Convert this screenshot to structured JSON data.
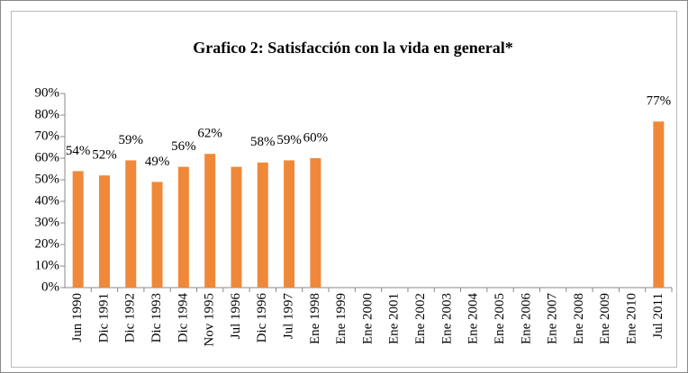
{
  "chart_data": {
    "type": "bar",
    "title": "Grafico 2: Satisfacción con la vida en general*",
    "categories": [
      "Jun 1990",
      "Dic 1991",
      "Dic 1992",
      "Dic 1993",
      "Dic 1994",
      "Nov 1995",
      "Jul 1996",
      "Dic 1996",
      "Jul 1997",
      "Ene 1998",
      "Ene 1999",
      "Ene 2000",
      "Ene 2001",
      "Ene 2002",
      "Ene 2003",
      "Ene 2004",
      "Ene 2005",
      "Ene 2006",
      "Ene 2007",
      "Ene 2008",
      "Ene 2009",
      "Ene 2010",
      "Jul 2011"
    ],
    "values": [
      54,
      52,
      59,
      49,
      56,
      62,
      56,
      58,
      59,
      60,
      null,
      null,
      null,
      null,
      null,
      null,
      null,
      null,
      null,
      null,
      null,
      null,
      77
    ],
    "value_labels": [
      "54%",
      "52%",
      "59%",
      "49%",
      "56%",
      "62%",
      null,
      "58%",
      "59%",
      "60%",
      null,
      null,
      null,
      null,
      null,
      null,
      null,
      null,
      null,
      null,
      null,
      null,
      "77%"
    ],
    "color": "#f0883a",
    "ylim": [
      0,
      90
    ],
    "yticks": [
      {
        "value": 0,
        "label": "0%"
      },
      {
        "value": 10,
        "label": "10%"
      },
      {
        "value": 20,
        "label": "20%"
      },
      {
        "value": 30,
        "label": "30%"
      },
      {
        "value": 40,
        "label": "40%"
      },
      {
        "value": 50,
        "label": "50%"
      },
      {
        "value": 60,
        "label": "60%"
      },
      {
        "value": 70,
        "label": "70%"
      },
      {
        "value": 80,
        "label": "80%"
      },
      {
        "value": 90,
        "label": "90%"
      }
    ],
    "grid": false
  }
}
